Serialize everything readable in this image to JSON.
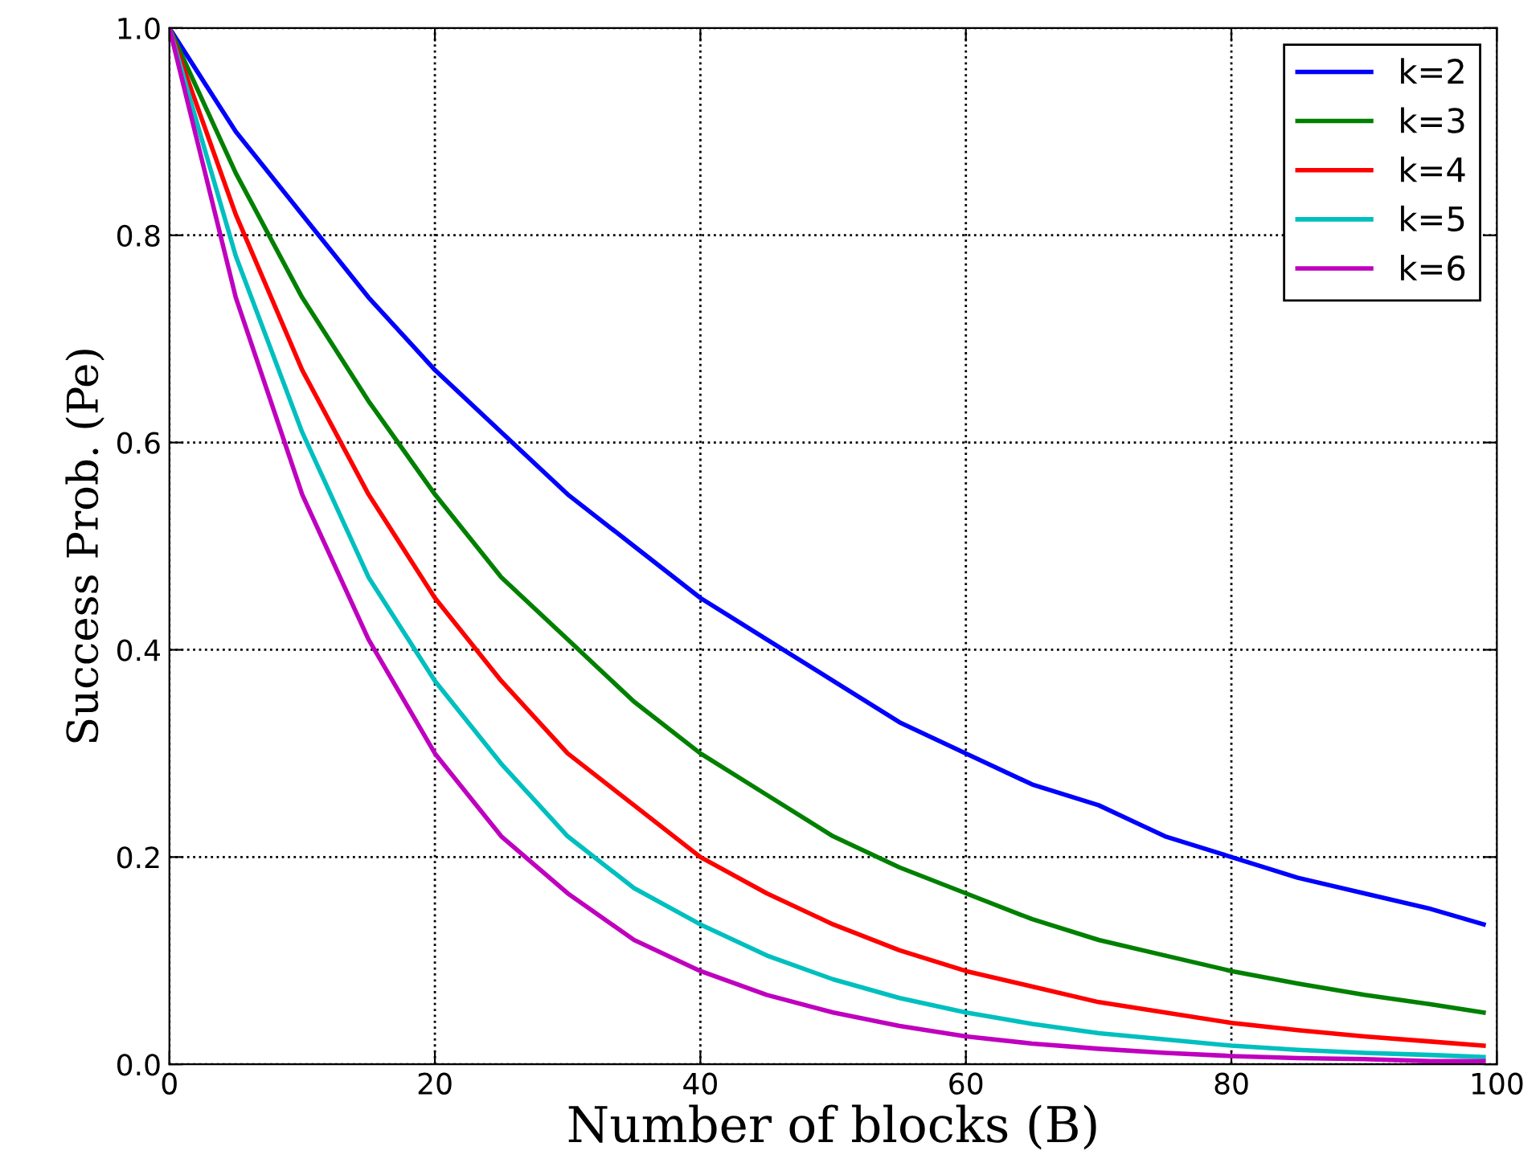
{
  "chart_data": {
    "type": "line",
    "xlabel": "Number of blocks (B)",
    "ylabel": "Success Prob. (Pe)",
    "x": [
      0,
      5,
      10,
      15,
      20,
      25,
      30,
      35,
      40,
      45,
      50,
      55,
      60,
      65,
      70,
      75,
      80,
      85,
      90,
      95,
      99
    ],
    "series": [
      {
        "name": "k=2",
        "color": "#0000ff",
        "values": [
          1.0,
          0.9,
          0.82,
          0.74,
          0.67,
          0.61,
          0.55,
          0.5,
          0.45,
          0.41,
          0.37,
          0.33,
          0.3,
          0.27,
          0.25,
          0.22,
          0.2,
          0.18,
          0.165,
          0.15,
          0.135
        ]
      },
      {
        "name": "k=3",
        "color": "#008000",
        "values": [
          1.0,
          0.86,
          0.74,
          0.64,
          0.55,
          0.47,
          0.41,
          0.35,
          0.3,
          0.26,
          0.22,
          0.19,
          0.165,
          0.14,
          0.12,
          0.105,
          0.09,
          0.078,
          0.067,
          0.058,
          0.05
        ]
      },
      {
        "name": "k=4",
        "color": "#ff0000",
        "values": [
          1.0,
          0.82,
          0.67,
          0.55,
          0.45,
          0.37,
          0.3,
          0.25,
          0.2,
          0.165,
          0.135,
          0.11,
          0.09,
          0.075,
          0.06,
          0.05,
          0.04,
          0.033,
          0.027,
          0.022,
          0.018
        ]
      },
      {
        "name": "k=5",
        "color": "#00bfbf",
        "values": [
          1.0,
          0.78,
          0.61,
          0.47,
          0.37,
          0.29,
          0.22,
          0.17,
          0.135,
          0.105,
          0.082,
          0.064,
          0.05,
          0.039,
          0.03,
          0.024,
          0.018,
          0.014,
          0.011,
          0.009,
          0.007
        ]
      },
      {
        "name": "k=6",
        "color": "#bf00bf",
        "values": [
          1.0,
          0.74,
          0.55,
          0.41,
          0.3,
          0.22,
          0.165,
          0.12,
          0.09,
          0.067,
          0.05,
          0.037,
          0.027,
          0.02,
          0.015,
          0.011,
          0.008,
          0.006,
          0.005,
          0.003,
          0.003
        ]
      }
    ],
    "xlim": [
      0,
      100
    ],
    "xticks": [
      0,
      20,
      40,
      60,
      80,
      100
    ],
    "ylim": [
      0,
      1.0
    ],
    "yticks": [
      {
        "value": 0,
        "label": "0.0"
      },
      {
        "value": 0.2,
        "label": "0.2"
      },
      {
        "value": 0.4,
        "label": "0.4"
      },
      {
        "value": 0.6,
        "label": "0.6"
      },
      {
        "value": 0.8,
        "label": "0.8"
      },
      {
        "value": 1.0,
        "label": "1.0"
      }
    ],
    "grid": true,
    "legend": "top right",
    "line_style": "solid",
    "marker": "none"
  }
}
